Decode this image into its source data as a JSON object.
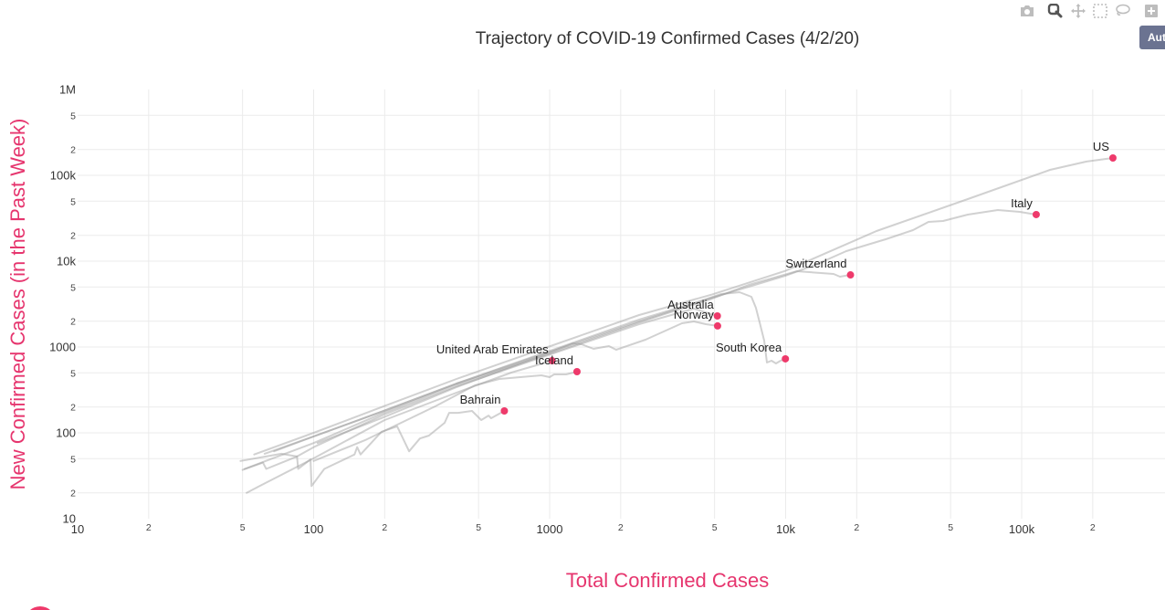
{
  "colors": {
    "accent": "#ee3a6b",
    "axis_title": "#e6356e",
    "autoscale_bg": "#6b7391",
    "icon_default": "#bdbdbd",
    "icon_active": "#555555"
  },
  "modebar": {
    "icons": [
      "camera-icon",
      "zoom-icon",
      "pan-icon",
      "box-select-icon",
      "lasso-select-icon",
      "zoom-in-icon"
    ],
    "active_icon": "zoom-icon",
    "autoscale_label": "Aut"
  },
  "chart_data": {
    "type": "line",
    "title": "Trajectory of COVID-19 Confirmed Cases (4/2/20)",
    "xlabel": "Total Confirmed Cases",
    "ylabel": "New Confirmed Cases (in the Past Week)",
    "xscale": "log",
    "yscale": "log",
    "xlim": [
      10,
      450000
    ],
    "ylim": [
      10,
      1000000
    ],
    "grid": true,
    "legend": "none",
    "x_ticks": [
      {
        "value": 10,
        "label": "10",
        "major": true
      },
      {
        "value": 20,
        "label": "2",
        "major": false
      },
      {
        "value": 50,
        "label": "5",
        "major": false
      },
      {
        "value": 100,
        "label": "100",
        "major": true
      },
      {
        "value": 200,
        "label": "2",
        "major": false
      },
      {
        "value": 500,
        "label": "5",
        "major": false
      },
      {
        "value": 1000,
        "label": "1000",
        "major": true
      },
      {
        "value": 2000,
        "label": "2",
        "major": false
      },
      {
        "value": 5000,
        "label": "5",
        "major": false
      },
      {
        "value": 10000,
        "label": "10k",
        "major": true
      },
      {
        "value": 20000,
        "label": "2",
        "major": false
      },
      {
        "value": 50000,
        "label": "5",
        "major": false
      },
      {
        "value": 100000,
        "label": "100k",
        "major": true
      },
      {
        "value": 200000,
        "label": "2",
        "major": false
      }
    ],
    "y_ticks": [
      {
        "value": 10,
        "label": "10",
        "major": true
      },
      {
        "value": 20,
        "label": "2",
        "major": false
      },
      {
        "value": 50,
        "label": "5",
        "major": false
      },
      {
        "value": 100,
        "label": "100",
        "major": true
      },
      {
        "value": 200,
        "label": "2",
        "major": false
      },
      {
        "value": 500,
        "label": "5",
        "major": false
      },
      {
        "value": 1000,
        "label": "1000",
        "major": true
      },
      {
        "value": 2000,
        "label": "2",
        "major": false
      },
      {
        "value": 5000,
        "label": "5",
        "major": false
      },
      {
        "value": 10000,
        "label": "10k",
        "major": true
      },
      {
        "value": 20000,
        "label": "2",
        "major": false
      },
      {
        "value": 50000,
        "label": "5",
        "major": false
      },
      {
        "value": 100000,
        "label": "100k",
        "major": true
      },
      {
        "value": 200000,
        "label": "2",
        "major": false
      },
      {
        "value": 500000,
        "label": "5",
        "major": false
      },
      {
        "value": 1000000,
        "label": "1M",
        "major": true
      }
    ],
    "series": [
      {
        "name": "US",
        "x": [
          56,
          100,
          198,
          403,
          982,
          2394,
          4885,
          9955,
          24260,
          59100,
          131900,
          188400,
          243600
        ],
        "y": [
          56,
          100,
          204,
          424,
          1000,
          2355,
          4100,
          7700,
          22440,
          52840,
          115900,
          144600,
          159300
        ]
      },
      {
        "name": "Italy",
        "x": [
          68,
          100,
          198,
          403,
          982,
          2394,
          4885,
          9955,
          13370,
          18070,
          26540,
          34640,
          40270,
          46450,
          59100,
          79250,
          98160,
          115242
        ],
        "y": [
          61,
          91,
          180,
          375,
          863,
          1986,
          3750,
          6760,
          9060,
          13090,
          17990,
          23010,
          28640,
          29370,
          34910,
          39460,
          37510,
          34910
        ]
      },
      {
        "name": "Switzerland",
        "x": [
          51,
          100,
          198,
          403,
          982,
          2394,
          4885,
          6970,
          11170,
          15960,
          16990,
          18827
        ],
        "y": [
          38,
          76,
          171,
          366,
          822,
          1937,
          3664,
          5285,
          7638,
          7100,
          6590,
          6920
        ]
      },
      {
        "name": "South Korea",
        "x": [
          62,
          100,
          198,
          403,
          982,
          2394,
          4084,
          5336,
          6380,
          7163,
          7482,
          7757,
          8113,
          8330,
          8710,
          9100,
          9520,
          9976
        ],
        "y": [
          57,
          91,
          180,
          375,
          885,
          2085,
          3243,
          4140,
          4345,
          3846,
          2865,
          1937,
          1186,
          659,
          692,
          644,
          692,
          728
        ]
      },
      {
        "name": "Australia",
        "x": [
          50,
          61,
          63,
          85,
          100,
          198,
          403,
          982,
          2394,
          4084,
          5136
        ],
        "y": [
          37,
          45,
          38,
          53,
          68,
          163,
          349,
          802,
          1845,
          2800,
          2300
        ]
      },
      {
        "name": "Norway",
        "x": [
          104,
          198,
          403,
          982,
          1250,
          1365,
          1535,
          1783,
          1915,
          2547,
          3638,
          4084,
          4592,
          5147
        ],
        "y": [
          76,
          152,
          341,
          843,
          1104,
          1077,
          953,
          1025,
          929,
          1217,
          1892,
          1986,
          1845,
          1760
        ]
      },
      {
        "name": "United Arab Emirates",
        "x": [
          52,
          59,
          98,
          200,
          403,
          688,
          1024
        ],
        "y": [
          20,
          24,
          49,
          141,
          294,
          504,
          692
        ]
      },
      {
        "name": "Iceland",
        "x": [
          100,
          165,
          328,
          482,
          612,
          752,
          923,
          1000,
          1045,
          1175,
          1306
        ],
        "y": [
          47,
          82,
          204,
          357,
          424,
          446,
          468,
          446,
          480,
          480,
          516
        ]
      },
      {
        "name": "Bahrain",
        "x": [
          49,
          73,
          85,
          86,
          97,
          98,
          111,
          149,
          153,
          158,
          194,
          226,
          254,
          282,
          308,
          359,
          375,
          410,
          469,
          513,
          551,
          565,
          643
        ],
        "y": [
          47,
          57,
          53,
          38,
          49,
          24,
          38,
          56,
          68,
          56,
          103,
          119,
          61,
          86,
          93,
          131,
          171,
          171,
          180,
          141,
          159,
          148,
          180
        ]
      }
    ]
  }
}
